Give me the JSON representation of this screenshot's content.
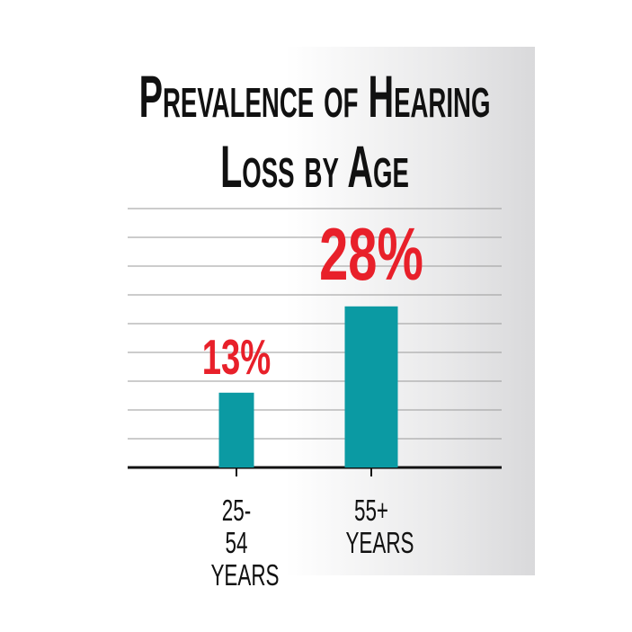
{
  "chart_data": {
    "type": "bar",
    "title": "Prevalence of Hearing Loss by Age",
    "categories": [
      "25-54 YEARS",
      "55+ YEARS"
    ],
    "values": [
      13,
      28
    ],
    "value_labels": [
      "13%",
      "28%"
    ],
    "color": "#0b9aa3",
    "label_color": "#e8202a",
    "ylim": [
      0,
      45
    ],
    "yticks": [
      0,
      5,
      10,
      15,
      20,
      25,
      30,
      35,
      40,
      45
    ],
    "grid": true
  }
}
